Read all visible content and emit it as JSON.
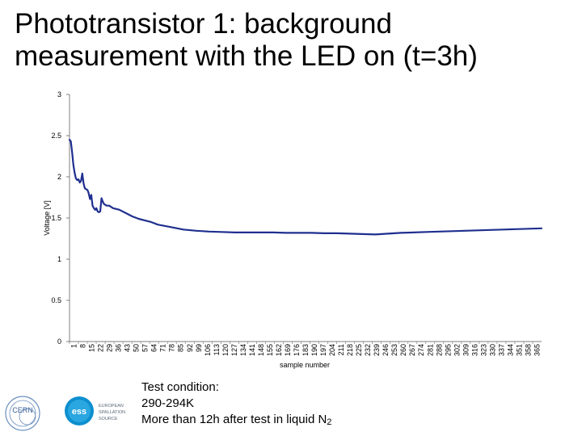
{
  "slide": {
    "title_line1": "Phototransistor 1: background",
    "title_line2": "measurement with the LED on (t=3h)"
  },
  "chart_data": {
    "type": "line",
    "title": "",
    "xlabel": "sample number",
    "ylabel": "Voltage [V]",
    "ylim": [
      0,
      3
    ],
    "yticks": [
      0,
      0.5,
      1,
      1.5,
      2,
      2.5,
      3
    ],
    "ytick_labels": [
      "0",
      "0.5",
      "1",
      "1.5",
      "2",
      "2.5",
      "3"
    ],
    "xlim": [
      1,
      370
    ],
    "xtick_labels": [
      "1",
      "8",
      "15",
      "22",
      "29",
      "36",
      "43",
      "50",
      "57",
      "64",
      "71",
      "78",
      "85",
      "92",
      "99",
      "106",
      "113",
      "120",
      "127",
      "134",
      "141",
      "148",
      "155",
      "162",
      "169",
      "176",
      "183",
      "190",
      "197",
      "204",
      "211",
      "218",
      "225",
      "232",
      "239",
      "246",
      "253",
      "260",
      "267",
      "274",
      "281",
      "288",
      "295",
      "302",
      "309",
      "316",
      "323",
      "330",
      "337",
      "344",
      "351",
      "358",
      "365"
    ],
    "grid": false,
    "legend": "none",
    "series": [
      {
        "color": "#1f2f8f",
        "x": [
          1,
          2,
          3,
          4,
          5,
          6,
          7,
          8,
          9,
          10,
          11,
          12,
          13,
          14,
          15,
          16,
          17,
          18,
          19,
          20,
          21,
          22,
          23,
          24,
          25,
          26,
          27,
          28,
          29,
          30,
          32,
          35,
          40,
          45,
          50,
          55,
          60,
          65,
          70,
          80,
          90,
          100,
          110,
          120,
          130,
          140,
          150,
          160,
          170,
          180,
          190,
          200,
          210,
          220,
          230,
          240,
          250,
          260,
          270,
          280,
          290,
          300,
          310,
          320,
          330,
          340,
          350,
          360,
          370
        ],
        "y": [
          2.45,
          2.43,
          2.3,
          2.15,
          2.05,
          1.98,
          1.96,
          1.97,
          1.93,
          1.95,
          2.04,
          1.92,
          1.86,
          1.85,
          1.84,
          1.8,
          1.73,
          1.78,
          1.65,
          1.62,
          1.6,
          1.62,
          1.58,
          1.57,
          1.58,
          1.74,
          1.7,
          1.67,
          1.66,
          1.65,
          1.65,
          1.62,
          1.6,
          1.56,
          1.52,
          1.49,
          1.47,
          1.45,
          1.42,
          1.39,
          1.36,
          1.345,
          1.335,
          1.33,
          1.325,
          1.325,
          1.325,
          1.325,
          1.32,
          1.32,
          1.32,
          1.315,
          1.315,
          1.31,
          1.305,
          1.3,
          1.31,
          1.32,
          1.325,
          1.33,
          1.335,
          1.34,
          1.345,
          1.35,
          1.355,
          1.36,
          1.365,
          1.37,
          1.375
        ]
      }
    ]
  },
  "note": {
    "line1": "Test condition:",
    "line2": "290-294K",
    "line3_main": "More than 12h after test in liquid N",
    "line3_sub": "2"
  },
  "logos": {
    "cern": "CERN",
    "ess_mark": "ess",
    "ess_text_1": "EUROPEAN",
    "ess_text_2": "SPALLATION",
    "ess_text_3": "SOURCE"
  }
}
